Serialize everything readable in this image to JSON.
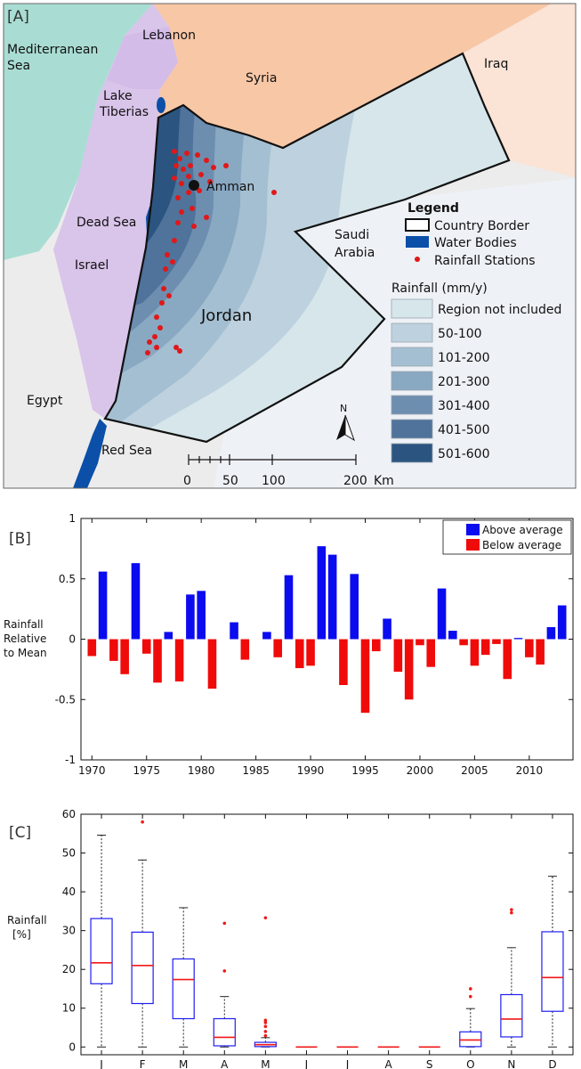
{
  "chart_data": [
    {
      "type": "map",
      "panel_label": "[A]",
      "place_labels": [
        "Mediterranean Sea",
        "Lebanon",
        "Syria",
        "Iraq",
        "Lake Tiberias",
        "Amman",
        "Dead Sea",
        "Israel",
        "Saudi Arabia",
        "Jordan",
        "Egypt",
        "Red Sea"
      ],
      "legend": {
        "title": "Legend",
        "items": [
          "Country Border",
          "Water Bodies",
          "Rainfall Stations"
        ],
        "rainfall_title": "Rainfall (mm/y)",
        "rainfall_classes": [
          {
            "label": "Region not included",
            "color": "#d6e6ea"
          },
          {
            "label": "50-100",
            "color": "#bdd2de"
          },
          {
            "label": "101-200",
            "color": "#a5bfd2"
          },
          {
            "label": "201-300",
            "color": "#89a8c2"
          },
          {
            "label": "301-400",
            "color": "#6e8eb0"
          },
          {
            "label": "401-500",
            "color": "#4f739b"
          },
          {
            "label": "501-600",
            "color": "#2b5580"
          }
        ]
      },
      "north_label": "N",
      "scale_bar": {
        "ticks": [
          "0",
          "50",
          "100",
          "200"
        ],
        "unit": "Km"
      }
    },
    {
      "type": "bar",
      "panel_label": "[B]",
      "ylabel": "Rainfall Relative to Mean",
      "ylim": [
        -1,
        1
      ],
      "yticks": [
        "1",
        "0.5",
        "0",
        "-0.5",
        "-1"
      ],
      "xlim": [
        1969,
        2014
      ],
      "xticks": [
        1970,
        1975,
        1980,
        1985,
        1990,
        1995,
        2000,
        2005,
        2010
      ],
      "legend": [
        "Above average",
        "Below average"
      ],
      "colors": {
        "above": "#0b0bf0",
        "below": "#f00b0b"
      },
      "years": [
        1970,
        1971,
        1972,
        1973,
        1974,
        1975,
        1976,
        1977,
        1978,
        1979,
        1980,
        1981,
        1982,
        1983,
        1984,
        1985,
        1986,
        1987,
        1988,
        1989,
        1990,
        1991,
        1992,
        1993,
        1994,
        1995,
        1996,
        1997,
        1998,
        1999,
        2000,
        2001,
        2002,
        2003,
        2004,
        2005,
        2006,
        2007,
        2008,
        2009,
        2010,
        2011,
        2012,
        2013
      ],
      "values": [
        -0.14,
        0.56,
        -0.18,
        -0.29,
        0.63,
        -0.12,
        -0.36,
        0.06,
        -0.35,
        0.37,
        0.4,
        -0.41,
        0.0,
        0.14,
        -0.17,
        0.0,
        0.06,
        -0.15,
        0.53,
        -0.24,
        -0.22,
        0.77,
        0.7,
        -0.38,
        0.54,
        -0.61,
        -0.1,
        0.17,
        -0.27,
        -0.5,
        -0.05,
        -0.23,
        0.42,
        0.07,
        -0.05,
        -0.22,
        -0.13,
        -0.04,
        -0.33,
        0.01,
        -0.15,
        -0.21,
        0.1,
        0.28
      ]
    },
    {
      "type": "box",
      "panel_label": "[C]",
      "ylabel": "Rainfall [%]",
      "ylim": [
        -2,
        60
      ],
      "yticks": [
        0,
        10,
        20,
        30,
        40,
        50,
        60
      ],
      "categories": [
        "J",
        "F",
        "M",
        "A",
        "M",
        "J",
        "J",
        "A",
        "S",
        "O",
        "N",
        "D"
      ],
      "boxes": [
        {
          "whisker_low": 0,
          "q1": 16.3,
          "median": 21.7,
          "q3": 33.1,
          "whisker_high": 54.6,
          "outliers": []
        },
        {
          "whisker_low": 0,
          "q1": 11.2,
          "median": 21.0,
          "q3": 29.6,
          "whisker_high": 48.2,
          "outliers": [
            58.0
          ]
        },
        {
          "whisker_low": 0,
          "q1": 7.3,
          "median": 17.4,
          "q3": 22.7,
          "whisker_high": 35.9,
          "outliers": []
        },
        {
          "whisker_low": 0,
          "q1": 0.3,
          "median": 2.5,
          "q3": 7.3,
          "whisker_high": 13.0,
          "outliers": [
            19.6,
            31.9
          ]
        },
        {
          "whisker_low": 0,
          "q1": 0.1,
          "median": 0.6,
          "q3": 1.2,
          "whisker_high": 2.4,
          "outliers": [
            2.9,
            4.0,
            5.3,
            6.3,
            6.9,
            33.3
          ]
        },
        {
          "whisker_low": 0,
          "q1": 0,
          "median": 0,
          "q3": 0,
          "whisker_high": 0,
          "outliers": []
        },
        {
          "whisker_low": 0,
          "q1": 0,
          "median": 0,
          "q3": 0,
          "whisker_high": 0,
          "outliers": []
        },
        {
          "whisker_low": 0,
          "q1": 0,
          "median": 0,
          "q3": 0,
          "whisker_high": 0,
          "outliers": []
        },
        {
          "whisker_low": 0,
          "q1": 0,
          "median": 0,
          "q3": 0,
          "whisker_high": 0,
          "outliers": []
        },
        {
          "whisker_low": 0,
          "q1": 0.1,
          "median": 1.8,
          "q3": 3.9,
          "whisker_high": 9.9,
          "outliers": [
            13.0,
            15.0
          ]
        },
        {
          "whisker_low": 0,
          "q1": 2.6,
          "median": 7.2,
          "q3": 13.5,
          "whisker_high": 25.6,
          "outliers": [
            34.6,
            35.4
          ]
        },
        {
          "whisker_low": 0,
          "q1": 9.2,
          "median": 17.9,
          "q3": 29.7,
          "whisker_high": 44.0,
          "outliers": []
        }
      ],
      "colors": {
        "box": "#1f1ff2",
        "median": "#f01818",
        "outlier": "#f01818",
        "whisker": "#222222"
      }
    }
  ]
}
